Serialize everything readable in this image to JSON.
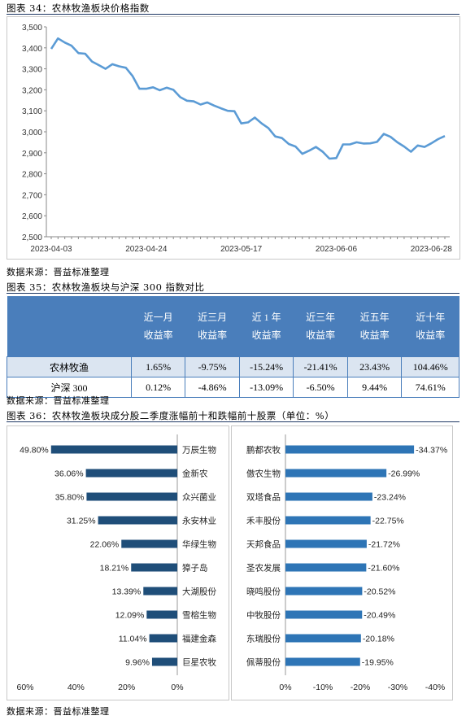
{
  "fig34": {
    "caption": "图表 34：农林牧渔板块价格指数",
    "source": "数据来源：晋益标准整理",
    "chart_data": {
      "type": "line",
      "ylim": [
        2500,
        3500
      ],
      "yticks": [
        "2,500",
        "2,600",
        "2,700",
        "2,800",
        "2,900",
        "3,000",
        "3,100",
        "3,200",
        "3,300",
        "3,400",
        "3,500"
      ],
      "xticks": [
        "2023-04-03",
        "2023-04-24",
        "2023-05-17",
        "2023-06-06",
        "2023-06-28"
      ],
      "x": [
        "2023-04-03",
        "2023-04-04",
        "2023-04-06",
        "2023-04-07",
        "2023-04-10",
        "2023-04-11",
        "2023-04-12",
        "2023-04-13",
        "2023-04-14",
        "2023-04-17",
        "2023-04-18",
        "2023-04-19",
        "2023-04-20",
        "2023-04-21",
        "2023-04-24",
        "2023-04-25",
        "2023-04-26",
        "2023-04-27",
        "2023-04-28",
        "2023-05-04",
        "2023-05-05",
        "2023-05-08",
        "2023-05-09",
        "2023-05-10",
        "2023-05-11",
        "2023-05-12",
        "2023-05-15",
        "2023-05-16",
        "2023-05-17",
        "2023-05-18",
        "2023-05-19",
        "2023-05-22",
        "2023-05-23",
        "2023-05-24",
        "2023-05-25",
        "2023-05-26",
        "2023-05-29",
        "2023-05-30",
        "2023-05-31",
        "2023-06-01",
        "2023-06-02",
        "2023-06-05",
        "2023-06-06",
        "2023-06-07",
        "2023-06-08",
        "2023-06-09",
        "2023-06-12",
        "2023-06-13",
        "2023-06-14",
        "2023-06-15",
        "2023-06-16",
        "2023-06-19",
        "2023-06-20",
        "2023-06-21",
        "2023-06-26",
        "2023-06-27",
        "2023-06-28",
        "2023-06-29",
        "2023-06-30"
      ],
      "values": [
        3395,
        3445,
        3425,
        3410,
        3375,
        3372,
        3335,
        3318,
        3300,
        3322,
        3312,
        3305,
        3265,
        3205,
        3205,
        3212,
        3198,
        3210,
        3200,
        3165,
        3148,
        3145,
        3130,
        3140,
        3125,
        3112,
        3100,
        3098,
        3040,
        3045,
        3068,
        3040,
        3018,
        2978,
        2970,
        2942,
        2930,
        2895,
        2910,
        2928,
        2905,
        2872,
        2875,
        2940,
        2940,
        2950,
        2944,
        2945,
        2952,
        2990,
        2976,
        2950,
        2930,
        2905,
        2935,
        2928,
        2945,
        2965,
        2980
      ]
    }
  },
  "fig35": {
    "caption": "图表 35：农林牧渔板块与沪深 300 指数对比",
    "source": "数据来源：晋益标准整理",
    "headers": [
      {
        "l1": "近一月",
        "l2": "收益率"
      },
      {
        "l1": "近三月",
        "l2": "收益率"
      },
      {
        "l1": "近 1 年",
        "l2": "收益率"
      },
      {
        "l1": "近三年",
        "l2": "收益率"
      },
      {
        "l1": "近五年",
        "l2": "收益率"
      },
      {
        "l1": "近十年",
        "l2": "收益率"
      }
    ],
    "rows": [
      {
        "name": "农林牧渔",
        "values": [
          "1.65%",
          "-9.75%",
          "-15.24%",
          "-21.41%",
          "23.43%",
          "104.46%"
        ]
      },
      {
        "name": "沪深 300",
        "values": [
          "0.12%",
          "-4.86%",
          "-13.09%",
          "-6.50%",
          "9.44%",
          "74.61%"
        ]
      }
    ]
  },
  "fig36": {
    "caption": "图表 36：农林牧渔板块成分股二季度涨幅前十和跌幅前十股票（单位：%）",
    "source": "数据来源：晋益标准整理",
    "bar_color": "#1f4e79",
    "bar_color2": "#2e75b6",
    "chart_data": [
      {
        "type": "bar",
        "orientation": "horizontal",
        "categories": [
          "万辰生物",
          "金新农",
          "众兴菌业",
          "永安林业",
          "华绿生物",
          "獐子岛",
          "大湖股份",
          "雪榕生物",
          "福建金森",
          "巨星农牧"
        ],
        "values": [
          49.8,
          36.06,
          35.8,
          31.25,
          22.06,
          18.21,
          13.39,
          12.09,
          11.04,
          9.96
        ],
        "labels": [
          "49.80%",
          "36.06%",
          "35.80%",
          "31.25%",
          "22.06%",
          "18.21%",
          "13.39%",
          "12.09%",
          "11.04%",
          "9.96%"
        ],
        "xlim": [
          60,
          0
        ],
        "xticks": [
          "60%",
          "40%",
          "20%",
          "0%"
        ]
      },
      {
        "type": "bar",
        "orientation": "horizontal",
        "categories": [
          "鹏都农牧",
          "傲农生物",
          "双塔食品",
          "禾丰股份",
          "天邦食品",
          "圣农发展",
          "晓鸣股份",
          "中牧股份",
          "东瑞股份",
          "佩蒂股份"
        ],
        "values": [
          -34.37,
          -26.99,
          -23.24,
          -22.75,
          -21.72,
          -21.6,
          -20.52,
          -20.49,
          -20.18,
          -19.95
        ],
        "labels": [
          "-34.37%",
          "-26.99%",
          "-23.24%",
          "-22.75%",
          "-21.72%",
          "-21.60%",
          "-20.52%",
          "-20.49%",
          "-20.18%",
          "-19.95%"
        ],
        "xlim": [
          0,
          -40
        ],
        "xticks": [
          "0%",
          "-10%",
          "-20%",
          "-30%",
          "-40%"
        ]
      }
    ]
  }
}
